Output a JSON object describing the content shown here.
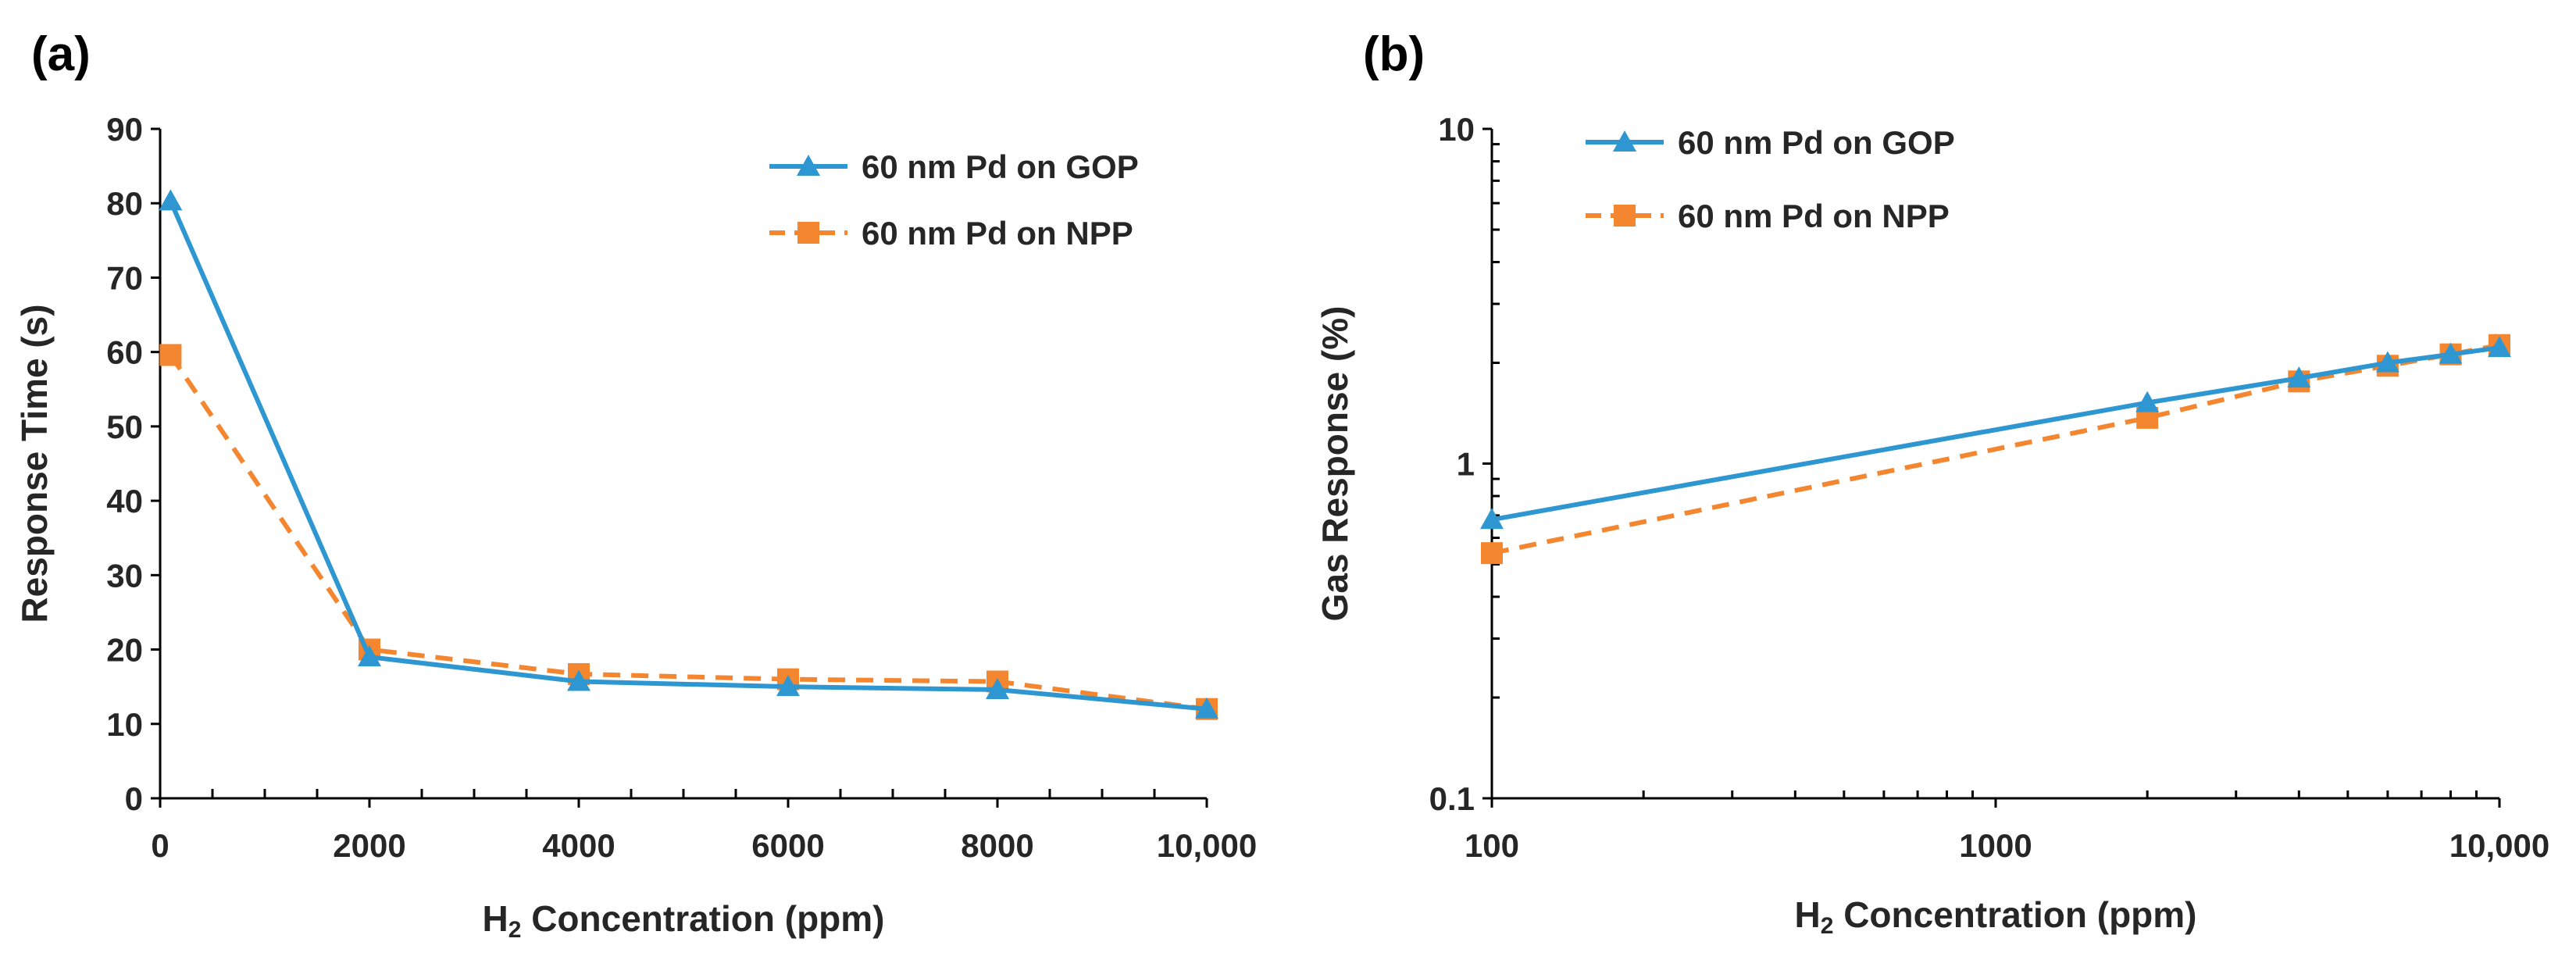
{
  "chart_data": [
    {
      "panel": "(a)",
      "type": "line",
      "xlabel": {
        "main": "H",
        "sub": "2",
        "rest": " Concentration (ppm)"
      },
      "ylabel": "Response Time (s)",
      "xlim": [
        0,
        10000
      ],
      "ylim": [
        0,
        90
      ],
      "x_ticks": [
        0,
        2000,
        4000,
        6000,
        8000,
        10000
      ],
      "x_tick_labels": [
        "0",
        "2000",
        "4000",
        "6000",
        "8000",
        "10,000"
      ],
      "y_ticks": [
        0,
        10,
        20,
        30,
        40,
        50,
        60,
        70,
        80,
        90
      ],
      "y_tick_labels": [
        "0",
        "10",
        "20",
        "30",
        "40",
        "50",
        "60",
        "70",
        "80",
        "90"
      ],
      "series": [
        {
          "name": "60 nm Pd on GOP",
          "color": "#2E97D1",
          "marker": "triangle",
          "dash": "solid",
          "x": [
            100,
            2000,
            4000,
            6000,
            8000,
            10000
          ],
          "y": [
            80.3,
            19.0,
            15.7,
            15.0,
            14.6,
            12.0
          ]
        },
        {
          "name": "60 nm Pd on NPP",
          "color": "#F4862F",
          "marker": "square",
          "dash": "dashed",
          "x": [
            100,
            2000,
            4000,
            6000,
            8000,
            10000
          ],
          "y": [
            59.6,
            20.0,
            16.7,
            16.0,
            15.7,
            12.0
          ]
        }
      ]
    },
    {
      "panel": "(b)",
      "type": "line",
      "xscale": "log",
      "yscale": "log",
      "xlabel": {
        "main": "H",
        "sub": "2",
        "rest": " Concentration (ppm)"
      },
      "ylabel": "Gas Response (%)",
      "xlim": [
        100,
        10000
      ],
      "ylim": [
        0.1,
        10
      ],
      "x_ticks": [
        100,
        1000,
        10000
      ],
      "x_tick_labels": [
        "100",
        "1000",
        "10,000"
      ],
      "y_ticks": [
        0.1,
        1,
        10
      ],
      "y_tick_labels": [
        "0.1",
        "1",
        "10"
      ],
      "series": [
        {
          "name": "60 nm Pd on GOP",
          "color": "#2E97D1",
          "marker": "triangle",
          "dash": "solid",
          "x": [
            100,
            2000,
            4000,
            6000,
            8000,
            10000
          ],
          "y": [
            0.68,
            1.52,
            1.8,
            2.0,
            2.12,
            2.22
          ]
        },
        {
          "name": "60 nm Pd on NPP",
          "color": "#F4862F",
          "marker": "square",
          "dash": "dashed",
          "x": [
            100,
            2000,
            4000,
            6000,
            8000,
            10000
          ],
          "y": [
            0.54,
            1.37,
            1.76,
            1.96,
            2.12,
            2.26
          ]
        }
      ]
    }
  ]
}
